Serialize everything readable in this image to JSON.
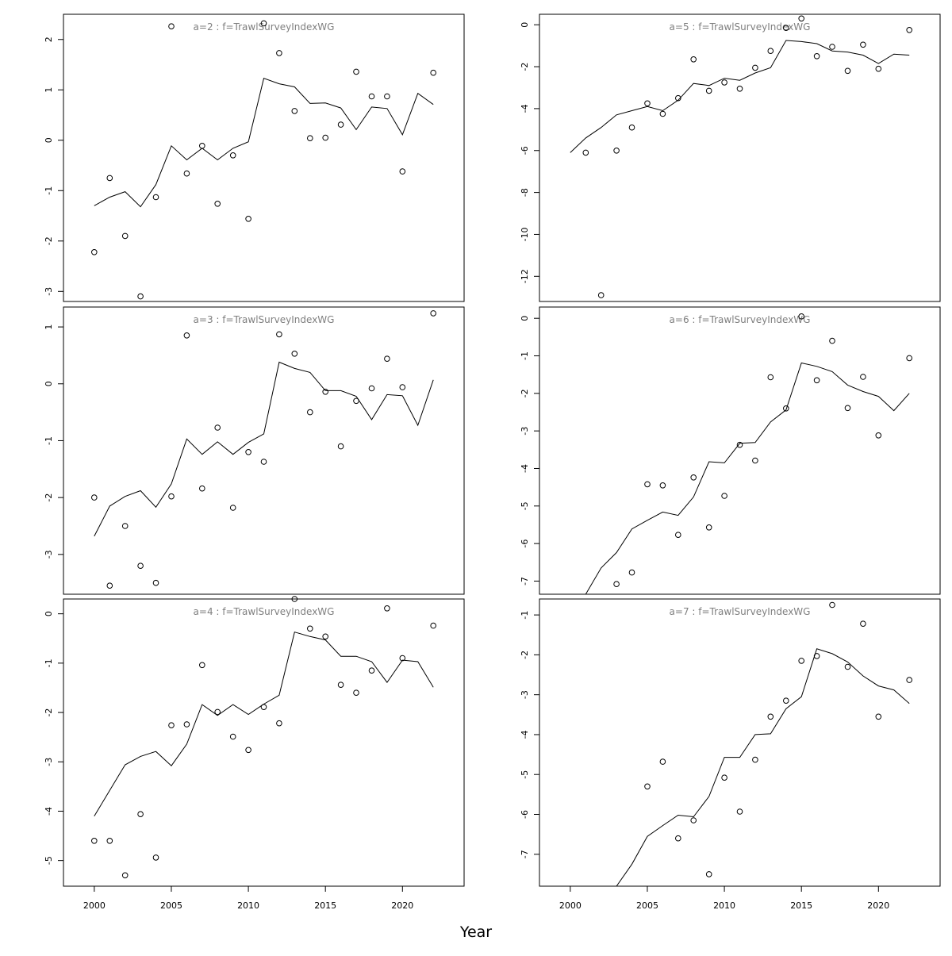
{
  "xlabel": "Year",
  "colors": {
    "frame": "#000000",
    "points": "#000000",
    "line": "#000000",
    "panel_title": "#7f7f7f"
  },
  "x_ticks": [
    2000,
    2005,
    2010,
    2015,
    2020
  ],
  "x_range": [
    1998,
    2024
  ],
  "chart_data": [
    {
      "type": "scatter",
      "title": "a=2  :  f=TrawlSurveyIndexWG",
      "ylim": [
        -3.2,
        2.5
      ],
      "y_ticks": [
        -3,
        -2,
        -1,
        0,
        1,
        2
      ],
      "obs": {
        "x": [
          2000,
          2001,
          2002,
          2003,
          2004,
          2005,
          2006,
          2007,
          2008,
          2009,
          2010,
          2011,
          2012,
          2013,
          2014,
          2015,
          2016,
          2017,
          2018,
          2019,
          2020,
          2022
        ],
        "y": [
          -2.22,
          -0.75,
          -1.9,
          -3.1,
          -1.13,
          2.26,
          -0.66,
          -0.11,
          -1.26,
          -0.3,
          -1.56,
          2.32,
          1.73,
          0.58,
          0.04,
          0.05,
          0.31,
          1.36,
          0.87,
          0.87,
          -0.62,
          1.34
        ]
      },
      "fit": {
        "x": [
          2000,
          2001,
          2002,
          2003,
          2004,
          2005,
          2006,
          2007,
          2008,
          2009,
          2010,
          2011,
          2012,
          2013,
          2014,
          2015,
          2016,
          2017,
          2018,
          2019,
          2020,
          2021,
          2022
        ],
        "y": [
          -1.3,
          -1.13,
          -1.02,
          -1.32,
          -0.88,
          -0.11,
          -0.39,
          -0.16,
          -0.39,
          -0.16,
          -0.03,
          1.23,
          1.12,
          1.06,
          0.73,
          0.74,
          0.64,
          0.21,
          0.66,
          0.63,
          0.11,
          0.93,
          0.71
        ]
      }
    },
    {
      "type": "scatter",
      "title": "a=5  :  f=TrawlSurveyIndexWG",
      "ylim": [
        -13.2,
        0.5
      ],
      "y_ticks": [
        -12,
        -10,
        -8,
        -6,
        -4,
        -2,
        0
      ],
      "obs": {
        "x": [
          2001,
          2002,
          2003,
          2004,
          2005,
          2006,
          2007,
          2008,
          2009,
          2010,
          2011,
          2012,
          2013,
          2014,
          2015,
          2016,
          2017,
          2018,
          2019,
          2020,
          2022
        ],
        "y": [
          -6.1,
          -12.9,
          -6.0,
          -4.9,
          -3.75,
          -4.25,
          -3.5,
          -1.65,
          -3.15,
          -2.75,
          -3.05,
          -2.05,
          -1.25,
          -0.15,
          0.3,
          -1.5,
          -1.05,
          -2.2,
          -0.95,
          -2.1,
          -0.25
        ]
      },
      "fit": {
        "x": [
          2000,
          2001,
          2002,
          2003,
          2004,
          2005,
          2006,
          2007,
          2008,
          2009,
          2010,
          2011,
          2012,
          2013,
          2014,
          2015,
          2016,
          2017,
          2018,
          2019,
          2020,
          2021,
          2022
        ],
        "y": [
          -6.1,
          -5.4,
          -4.9,
          -4.3,
          -4.1,
          -3.9,
          -4.1,
          -3.6,
          -2.8,
          -2.9,
          -2.55,
          -2.65,
          -2.3,
          -2.05,
          -0.75,
          -0.8,
          -0.9,
          -1.25,
          -1.3,
          -1.45,
          -1.85,
          -1.4,
          -1.45
        ]
      }
    },
    {
      "type": "scatter",
      "title": "a=3  :  f=TrawlSurveyIndexWG",
      "ylim": [
        -3.7,
        1.35
      ],
      "y_ticks": [
        -3,
        -2,
        -1,
        0,
        1
      ],
      "obs": {
        "x": [
          2000,
          2001,
          2002,
          2003,
          2004,
          2005,
          2006,
          2007,
          2008,
          2009,
          2010,
          2011,
          2012,
          2013,
          2014,
          2015,
          2016,
          2017,
          2018,
          2019,
          2020,
          2022
        ],
        "y": [
          -2.0,
          -3.55,
          -2.5,
          -3.2,
          -3.5,
          -1.98,
          0.85,
          -1.84,
          -0.77,
          -2.18,
          -1.2,
          -1.37,
          0.87,
          0.53,
          -0.5,
          -0.14,
          -1.1,
          -0.3,
          -0.08,
          0.44,
          -0.06,
          1.24
        ]
      },
      "fit": {
        "x": [
          2000,
          2001,
          2002,
          2003,
          2004,
          2005,
          2006,
          2007,
          2008,
          2009,
          2010,
          2011,
          2012,
          2013,
          2014,
          2015,
          2016,
          2017,
          2018,
          2019,
          2020,
          2021,
          2022
        ],
        "y": [
          -2.68,
          -2.15,
          -1.98,
          -1.88,
          -2.17,
          -1.76,
          -0.97,
          -1.24,
          -1.02,
          -1.24,
          -1.03,
          -0.88,
          0.38,
          0.27,
          0.2,
          -0.12,
          -0.12,
          -0.22,
          -0.63,
          -0.19,
          -0.21,
          -0.73,
          0.07
        ]
      }
    },
    {
      "type": "scatter",
      "title": "a=6  :  f=TrawlSurveyIndexWG",
      "ylim": [
        -7.35,
        0.3
      ],
      "y_ticks": [
        -7,
        -6,
        -5,
        -4,
        -3,
        -2,
        -1,
        0
      ],
      "obs": {
        "x": [
          2003,
          2004,
          2005,
          2006,
          2007,
          2008,
          2009,
          2010,
          2011,
          2012,
          2013,
          2014,
          2015,
          2016,
          2017,
          2018,
          2019,
          2020,
          2022
        ],
        "y": [
          -7.08,
          -6.77,
          -4.42,
          -4.45,
          -5.77,
          -4.24,
          -5.57,
          -4.73,
          -3.37,
          -3.79,
          -1.57,
          -2.4,
          0.05,
          -1.65,
          -0.6,
          -2.39,
          -1.56,
          -3.12,
          -1.06
        ]
      },
      "fit": {
        "x": [
          2001,
          2002,
          2003,
          2004,
          2005,
          2006,
          2007,
          2008,
          2009,
          2010,
          2011,
          2012,
          2013,
          2014,
          2015,
          2016,
          2017,
          2018,
          2019,
          2020,
          2021,
          2022
        ],
        "y": [
          -7.35,
          -6.65,
          -6.24,
          -5.61,
          -5.38,
          -5.16,
          -5.25,
          -4.76,
          -3.82,
          -3.85,
          -3.33,
          -3.31,
          -2.76,
          -2.44,
          -1.19,
          -1.28,
          -1.42,
          -1.78,
          -1.95,
          -2.08,
          -2.46,
          -2.0
        ]
      }
    },
    {
      "type": "scatter",
      "title": "a=4  :  f=TrawlSurveyIndexWG",
      "ylim": [
        -5.52,
        0.3
      ],
      "y_ticks": [
        -5,
        -4,
        -3,
        -2,
        -1,
        0
      ],
      "obs": {
        "x": [
          2000,
          2001,
          2002,
          2003,
          2004,
          2005,
          2006,
          2007,
          2008,
          2009,
          2010,
          2011,
          2012,
          2013,
          2014,
          2015,
          2016,
          2017,
          2018,
          2019,
          2020,
          2022
        ],
        "y": [
          -4.6,
          -4.6,
          -5.3,
          -4.06,
          -4.94,
          -2.26,
          -2.24,
          -1.04,
          -1.99,
          -2.49,
          -2.76,
          -1.89,
          -2.22,
          0.3,
          -0.3,
          -0.46,
          -1.44,
          -1.6,
          -1.15,
          0.11,
          -0.9,
          -0.24
        ]
      },
      "fit": {
        "x": [
          2000,
          2001,
          2002,
          2003,
          2004,
          2005,
          2006,
          2007,
          2008,
          2009,
          2010,
          2011,
          2012,
          2013,
          2014,
          2015,
          2016,
          2017,
          2018,
          2019,
          2020,
          2021,
          2022
        ],
        "y": [
          -4.1,
          -3.58,
          -3.06,
          -2.89,
          -2.79,
          -3.08,
          -2.64,
          -1.84,
          -2.06,
          -1.84,
          -2.04,
          -1.83,
          -1.65,
          -0.37,
          -0.46,
          -0.53,
          -0.86,
          -0.86,
          -0.97,
          -1.39,
          -0.94,
          -0.97,
          -1.49
        ]
      }
    },
    {
      "type": "scatter",
      "title": "a=7  :  f=TrawlSurveyIndexWG",
      "ylim": [
        -7.8,
        -0.6
      ],
      "y_ticks": [
        -7,
        -6,
        -5,
        -4,
        -3,
        -2,
        -1
      ],
      "obs": {
        "x": [
          2005,
          2006,
          2007,
          2008,
          2009,
          2010,
          2011,
          2012,
          2013,
          2014,
          2015,
          2016,
          2017,
          2018,
          2019,
          2020,
          2022
        ],
        "y": [
          -5.3,
          -4.68,
          -6.6,
          -6.15,
          -7.5,
          -5.08,
          -5.93,
          -4.63,
          -3.55,
          -3.15,
          -2.15,
          -2.03,
          -0.75,
          -2.3,
          -1.22,
          -3.55,
          -2.63
        ]
      },
      "fit": {
        "x": [
          2003,
          2004,
          2005,
          2006,
          2007,
          2008,
          2009,
          2010,
          2011,
          2012,
          2013,
          2014,
          2015,
          2016,
          2017,
          2018,
          2019,
          2020,
          2021,
          2022
        ],
        "y": [
          -7.8,
          -7.25,
          -6.55,
          -6.28,
          -6.02,
          -6.06,
          -5.55,
          -4.57,
          -4.57,
          -4.0,
          -3.98,
          -3.35,
          -3.05,
          -1.85,
          -1.97,
          -2.18,
          -2.53,
          -2.78,
          -2.88,
          -3.22
        ]
      }
    }
  ]
}
